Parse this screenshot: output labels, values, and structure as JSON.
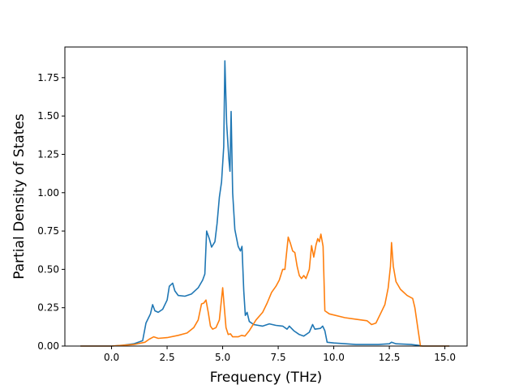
{
  "chart_data": {
    "type": "line",
    "title": "",
    "xlabel": "Frequency (THz)",
    "ylabel": "Partial Density of States",
    "xlim": [
      -2.1,
      16.0
    ],
    "ylim": [
      0.0,
      1.95
    ],
    "xticks": [
      0.0,
      2.5,
      5.0,
      7.5,
      10.0,
      12.5,
      15.0
    ],
    "xtick_labels": [
      "0.0",
      "2.5",
      "5.0",
      "7.5",
      "10.0",
      "12.5",
      "15.0"
    ],
    "yticks": [
      0.0,
      0.25,
      0.5,
      0.75,
      1.0,
      1.25,
      1.5,
      1.75
    ],
    "ytick_labels": [
      "0.00",
      "0.25",
      "0.50",
      "0.75",
      "1.00",
      "1.25",
      "1.50",
      "1.75"
    ],
    "grid": false,
    "legend": "none",
    "series": [
      {
        "color": "#1f77b4",
        "points": [
          [
            -1.4,
            0.0
          ],
          [
            0.0,
            0.0
          ],
          [
            0.5,
            0.005
          ],
          [
            1.0,
            0.015
          ],
          [
            1.4,
            0.035
          ],
          [
            1.55,
            0.15
          ],
          [
            1.75,
            0.21
          ],
          [
            1.85,
            0.27
          ],
          [
            1.95,
            0.23
          ],
          [
            2.1,
            0.22
          ],
          [
            2.3,
            0.24
          ],
          [
            2.5,
            0.3
          ],
          [
            2.6,
            0.39
          ],
          [
            2.75,
            0.41
          ],
          [
            2.85,
            0.36
          ],
          [
            3.0,
            0.33
          ],
          [
            3.3,
            0.325
          ],
          [
            3.6,
            0.34
          ],
          [
            3.9,
            0.38
          ],
          [
            4.1,
            0.43
          ],
          [
            4.2,
            0.47
          ],
          [
            4.28,
            0.75
          ],
          [
            4.4,
            0.7
          ],
          [
            4.5,
            0.645
          ],
          [
            4.65,
            0.68
          ],
          [
            4.75,
            0.8
          ],
          [
            4.85,
            0.97
          ],
          [
            4.95,
            1.07
          ],
          [
            5.05,
            1.3
          ],
          [
            5.1,
            1.86
          ],
          [
            5.18,
            1.45
          ],
          [
            5.28,
            1.22
          ],
          [
            5.33,
            1.14
          ],
          [
            5.38,
            1.53
          ],
          [
            5.45,
            1.0
          ],
          [
            5.55,
            0.76
          ],
          [
            5.7,
            0.65
          ],
          [
            5.8,
            0.62
          ],
          [
            5.87,
            0.65
          ],
          [
            5.95,
            0.36
          ],
          [
            6.02,
            0.2
          ],
          [
            6.1,
            0.22
          ],
          [
            6.2,
            0.16
          ],
          [
            6.4,
            0.14
          ],
          [
            6.8,
            0.13
          ],
          [
            7.1,
            0.145
          ],
          [
            7.4,
            0.135
          ],
          [
            7.7,
            0.13
          ],
          [
            7.9,
            0.11
          ],
          [
            8.0,
            0.13
          ],
          [
            8.2,
            0.1
          ],
          [
            8.45,
            0.075
          ],
          [
            8.65,
            0.065
          ],
          [
            8.9,
            0.09
          ],
          [
            9.05,
            0.14
          ],
          [
            9.15,
            0.11
          ],
          [
            9.4,
            0.115
          ],
          [
            9.5,
            0.13
          ],
          [
            9.6,
            0.1
          ],
          [
            9.7,
            0.025
          ],
          [
            10.0,
            0.02
          ],
          [
            11.0,
            0.01
          ],
          [
            12.0,
            0.01
          ],
          [
            12.5,
            0.015
          ],
          [
            12.6,
            0.025
          ],
          [
            12.8,
            0.015
          ],
          [
            13.5,
            0.01
          ],
          [
            13.8,
            0.005
          ],
          [
            14.0,
            0.0
          ],
          [
            15.2,
            0.0
          ]
        ]
      },
      {
        "color": "#ff7f0e",
        "points": [
          [
            -1.4,
            0.0
          ],
          [
            0.0,
            0.0
          ],
          [
            0.5,
            0.005
          ],
          [
            1.0,
            0.01
          ],
          [
            1.5,
            0.025
          ],
          [
            1.7,
            0.045
          ],
          [
            1.9,
            0.06
          ],
          [
            2.1,
            0.05
          ],
          [
            2.5,
            0.055
          ],
          [
            3.0,
            0.07
          ],
          [
            3.4,
            0.085
          ],
          [
            3.7,
            0.12
          ],
          [
            3.9,
            0.17
          ],
          [
            4.05,
            0.275
          ],
          [
            4.15,
            0.28
          ],
          [
            4.25,
            0.3
          ],
          [
            4.35,
            0.22
          ],
          [
            4.45,
            0.13
          ],
          [
            4.55,
            0.11
          ],
          [
            4.7,
            0.12
          ],
          [
            4.85,
            0.17
          ],
          [
            5.0,
            0.38
          ],
          [
            5.08,
            0.24
          ],
          [
            5.15,
            0.12
          ],
          [
            5.25,
            0.075
          ],
          [
            5.35,
            0.08
          ],
          [
            5.45,
            0.06
          ],
          [
            5.7,
            0.06
          ],
          [
            5.85,
            0.07
          ],
          [
            6.0,
            0.065
          ],
          [
            6.2,
            0.1
          ],
          [
            6.5,
            0.17
          ],
          [
            6.8,
            0.22
          ],
          [
            7.0,
            0.28
          ],
          [
            7.2,
            0.35
          ],
          [
            7.4,
            0.39
          ],
          [
            7.55,
            0.43
          ],
          [
            7.7,
            0.5
          ],
          [
            7.8,
            0.5
          ],
          [
            7.95,
            0.71
          ],
          [
            8.05,
            0.67
          ],
          [
            8.15,
            0.62
          ],
          [
            8.25,
            0.61
          ],
          [
            8.35,
            0.52
          ],
          [
            8.45,
            0.46
          ],
          [
            8.55,
            0.44
          ],
          [
            8.65,
            0.46
          ],
          [
            8.75,
            0.44
          ],
          [
            8.9,
            0.5
          ],
          [
            9.0,
            0.655
          ],
          [
            9.1,
            0.58
          ],
          [
            9.2,
            0.66
          ],
          [
            9.28,
            0.7
          ],
          [
            9.35,
            0.68
          ],
          [
            9.42,
            0.73
          ],
          [
            9.52,
            0.65
          ],
          [
            9.6,
            0.23
          ],
          [
            9.8,
            0.21
          ],
          [
            10.5,
            0.185
          ],
          [
            11.0,
            0.175
          ],
          [
            11.5,
            0.165
          ],
          [
            11.7,
            0.14
          ],
          [
            11.9,
            0.15
          ],
          [
            12.1,
            0.21
          ],
          [
            12.3,
            0.27
          ],
          [
            12.45,
            0.38
          ],
          [
            12.55,
            0.52
          ],
          [
            12.6,
            0.675
          ],
          [
            12.68,
            0.52
          ],
          [
            12.8,
            0.42
          ],
          [
            13.0,
            0.37
          ],
          [
            13.3,
            0.33
          ],
          [
            13.55,
            0.31
          ],
          [
            13.65,
            0.25
          ],
          [
            13.8,
            0.1
          ],
          [
            13.9,
            0.0
          ],
          [
            15.2,
            0.0
          ]
        ]
      }
    ]
  }
}
